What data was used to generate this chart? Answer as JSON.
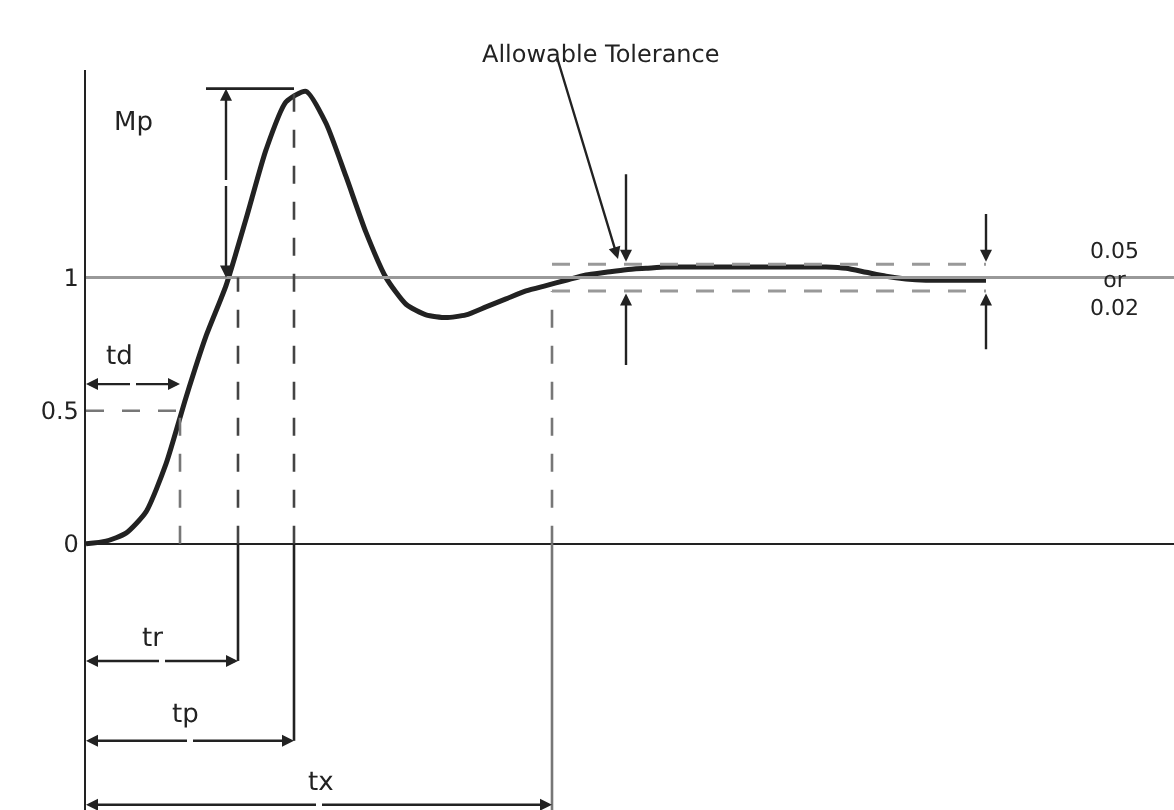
{
  "chart_data": {
    "type": "line",
    "categories": [
      null,
      null,
      null,
      null,
      null,
      null,
      null,
      null,
      null,
      null,
      null,
      null,
      null,
      null,
      null,
      null,
      null,
      null,
      null,
      null,
      null,
      null,
      null,
      null,
      null,
      null,
      null,
      null,
      null,
      null,
      null,
      null,
      null,
      null,
      null,
      null,
      null,
      null,
      null,
      null,
      null,
      null,
      null,
      null,
      null,
      null
    ],
    "values": [
      0,
      0.01,
      0.04,
      0.12,
      0.3,
      0.55,
      0.78,
      0.97,
      1.22,
      1.48,
      1.66,
      1.7,
      1.58,
      1.38,
      1.17,
      1.0,
      0.9,
      0.86,
      0.85,
      0.86,
      0.89,
      0.92,
      0.95,
      0.97,
      0.99,
      1.01,
      1.02,
      1.03,
      1.035,
      1.04,
      1.04,
      1.04,
      1.04,
      1.04,
      1.04,
      1.04,
      1.04,
      1.04,
      1.035,
      1.02,
      1.005,
      0.995,
      0.99,
      0.99,
      0.99,
      0.99
    ],
    "color": "#222222",
    "line_style": "solid",
    "ylim": [
      -1,
      1.78
    ],
    "yticks": [
      0,
      0.5,
      1
    ],
    "tick_labels": "y",
    "ref_lines": [
      {
        "axis": "y",
        "value": 1,
        "label": null,
        "color": "#999999",
        "line_style": "solid"
      },
      {
        "axis": "y",
        "value": 1.05,
        "label": null,
        "color": "#999999",
        "line_style": "dashed"
      },
      {
        "axis": "y",
        "value": 0.95,
        "label": null,
        "color": "#999999",
        "line_style": "dashed"
      }
    ],
    "annotations": [
      "Allowable Tolerance",
      "Mp",
      "td",
      "tr",
      "tp",
      "tx",
      "0.05\nor\n0.02"
    ]
  }
}
